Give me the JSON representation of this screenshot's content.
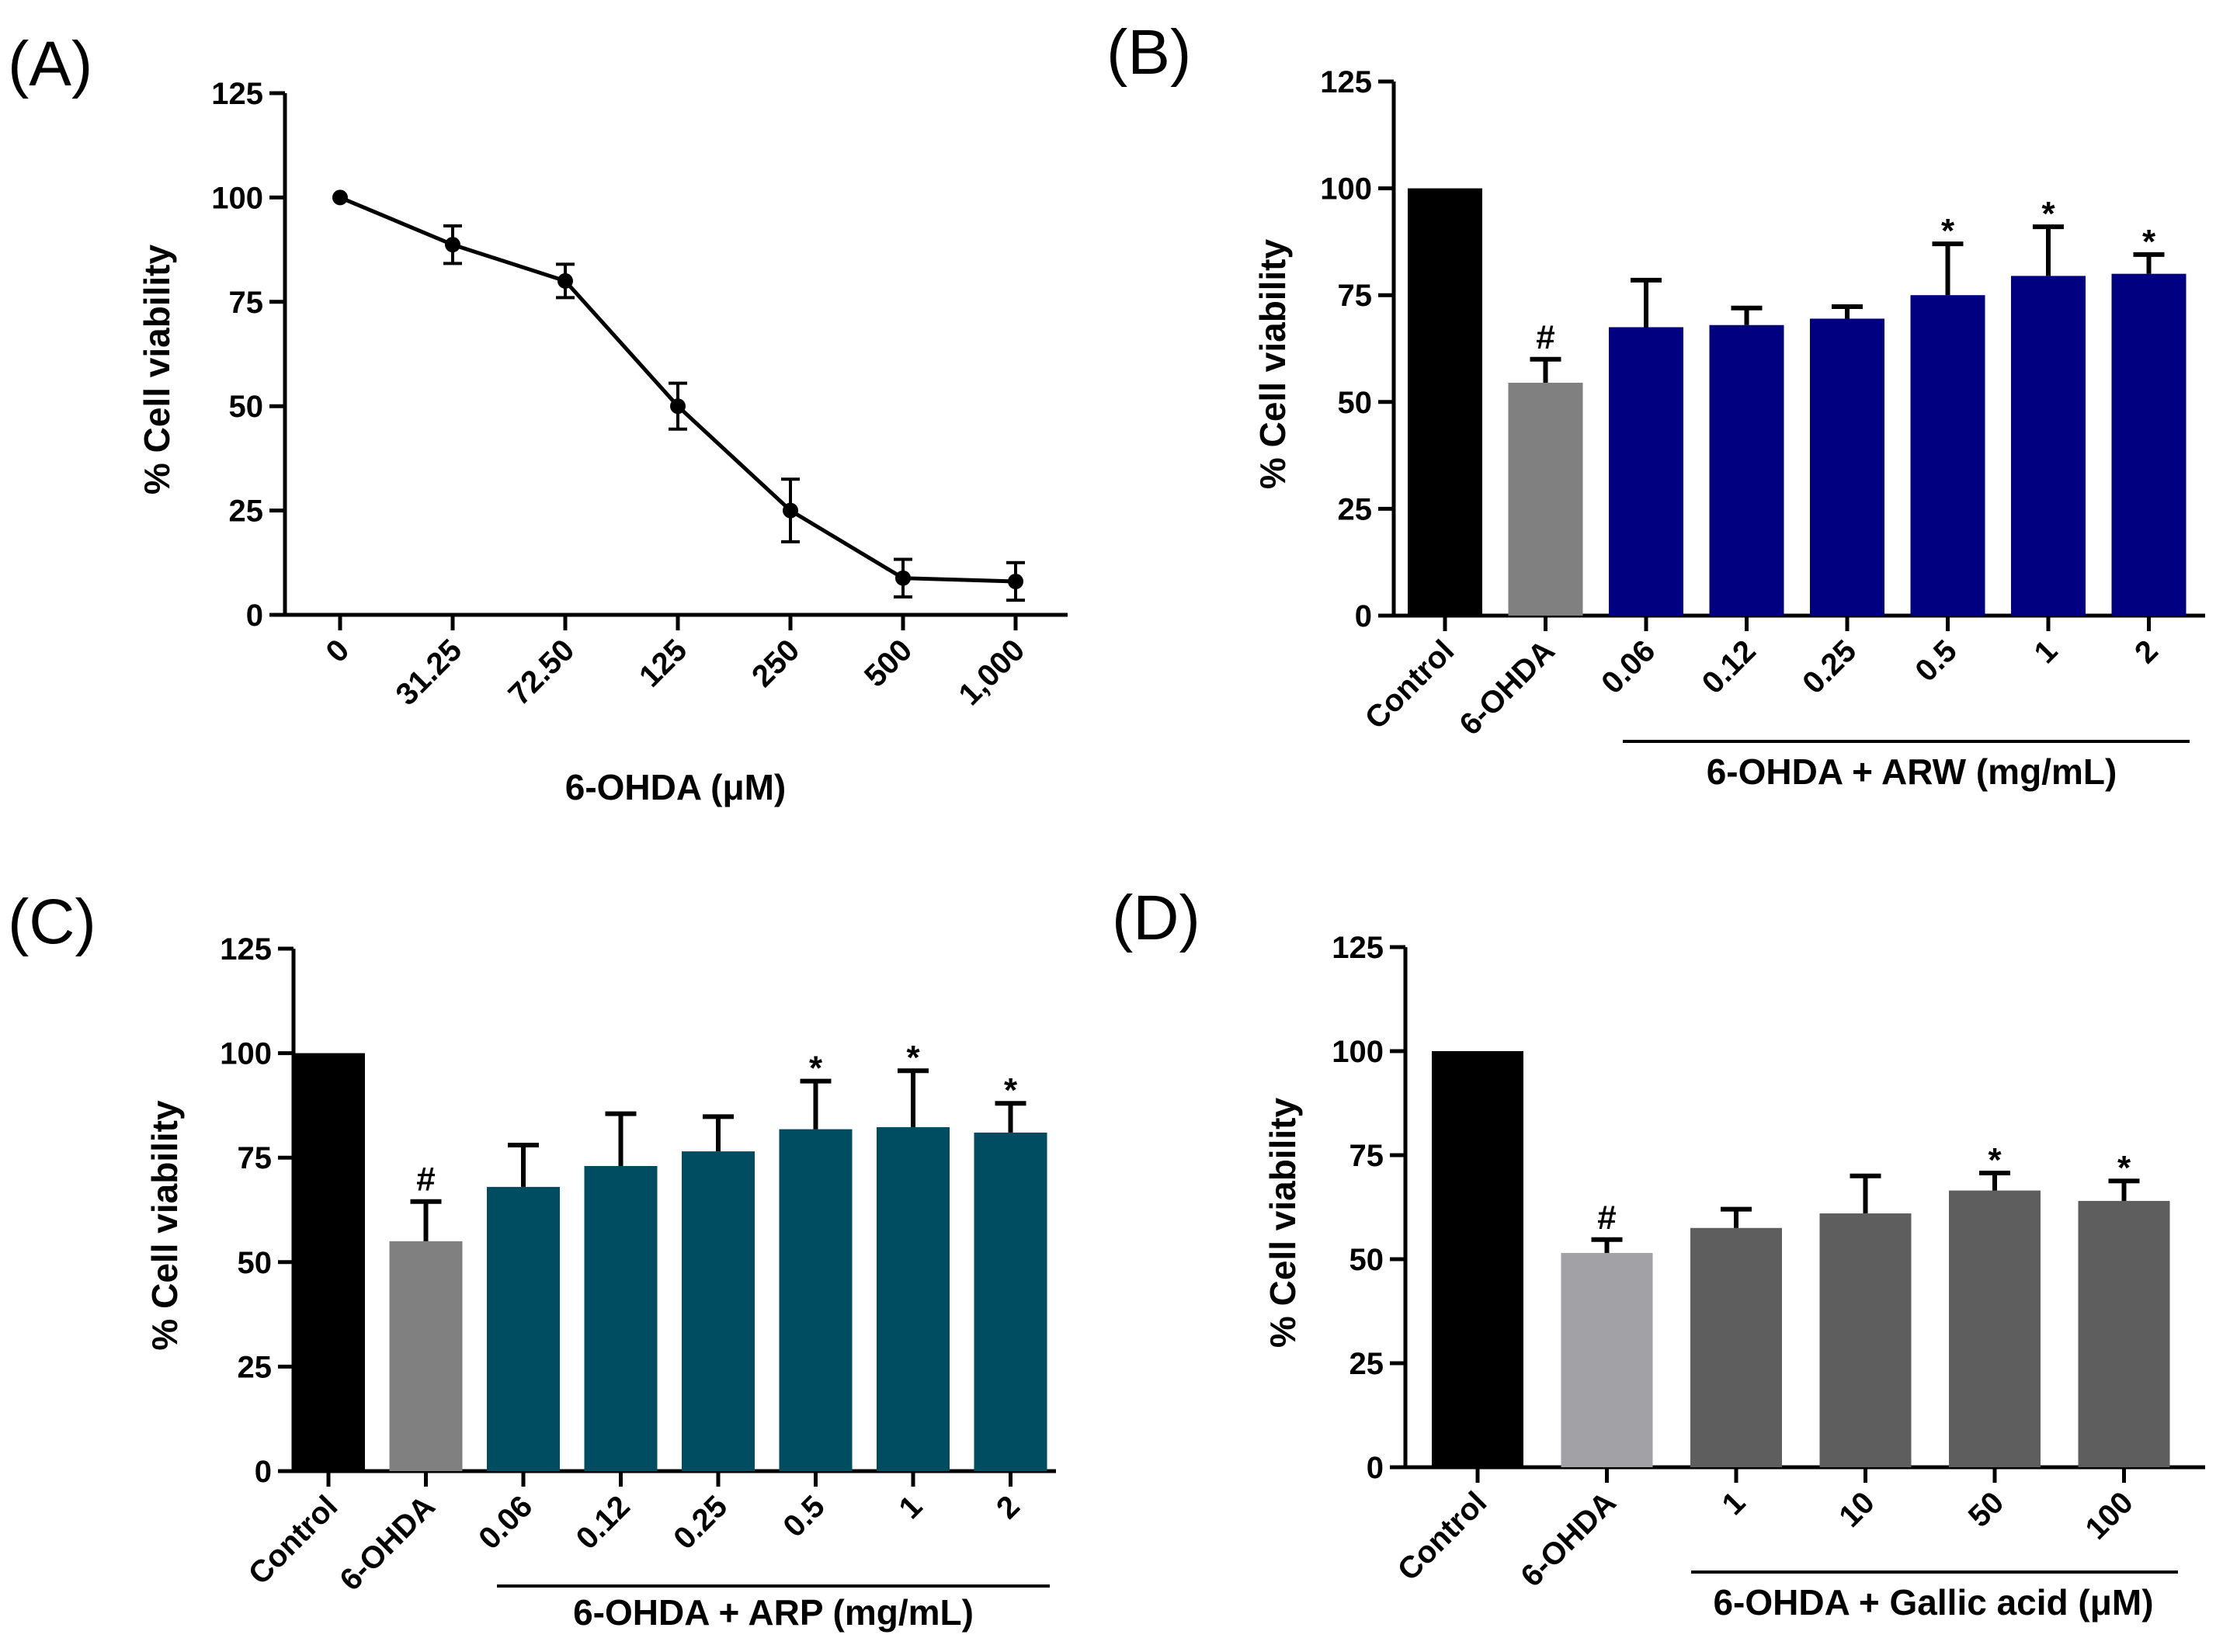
{
  "chart_data": [
    {
      "id": "A",
      "panel_label": "(A)",
      "type": "line",
      "categories": [
        "0",
        "31.25",
        "72.50",
        "125",
        "250",
        "500",
        "1,000"
      ],
      "values": [
        100,
        88.7,
        80,
        50,
        25,
        8.8,
        8
      ],
      "errors": [
        0,
        4.5,
        4,
        5.5,
        7.5,
        4.5,
        4.5
      ],
      "xlabel": "6-OHDA (μM)",
      "ylabel": "% Cell viability",
      "ylim": [
        0,
        125
      ],
      "yticks": [
        "0",
        "25",
        "50",
        "75",
        "100",
        "125"
      ]
    },
    {
      "id": "B",
      "panel_label": "(B)",
      "type": "bar",
      "categories": [
        "Control",
        "6-OHDA",
        "0.06",
        "0.12",
        "0.25",
        "0.5",
        "1",
        "2"
      ],
      "values": [
        100,
        54.5,
        67.5,
        68,
        69.5,
        75,
        79.5,
        80
      ],
      "errors": [
        0,
        5.5,
        11,
        4,
        2.8,
        12,
        11.5,
        4.5
      ],
      "annotations": [
        "",
        "#",
        "",
        "",
        "",
        "*",
        "*",
        "*"
      ],
      "colors": [
        "#000000",
        "#808080",
        "#000080",
        "#000080",
        "#000080",
        "#000080",
        "#000080",
        "#000080"
      ],
      "group_label": "6-OHDA + ARW (mg/mL)",
      "ylabel": "% Cell viability",
      "ylim": [
        0,
        125
      ],
      "yticks": [
        "0",
        "25",
        "50",
        "75",
        "100",
        "125"
      ]
    },
    {
      "id": "C",
      "panel_label": "(C)",
      "type": "bar",
      "categories": [
        "Control",
        "6-OHDA",
        "0.06",
        "0.12",
        "0.25",
        "0.5",
        "1",
        "2"
      ],
      "values": [
        100,
        55,
        68,
        73,
        76.5,
        81.8,
        82.3,
        81
      ],
      "errors": [
        0,
        9.5,
        10,
        12.5,
        8.3,
        11.5,
        13.5,
        7
      ],
      "annotations": [
        "",
        "#",
        "",
        "",
        "",
        "*",
        "*",
        "*"
      ],
      "colors": [
        "#000000",
        "#808080",
        "#004c60",
        "#004c60",
        "#004c60",
        "#004c60",
        "#004c60",
        "#004c60"
      ],
      "group_label": "6-OHDA + ARP (mg/mL)",
      "ylabel": "% Cell viability",
      "ylim": [
        0,
        125
      ],
      "yticks": [
        "0",
        "25",
        "50",
        "75",
        "100",
        "125"
      ]
    },
    {
      "id": "D",
      "panel_label": "(D)",
      "type": "bar",
      "categories": [
        "Control",
        "6-OHDA",
        "1",
        "10",
        "50",
        "100"
      ],
      "values": [
        100,
        51.5,
        57.5,
        61,
        66.5,
        64
      ],
      "errors": [
        0,
        3.2,
        4.5,
        9,
        4.2,
        4.8
      ],
      "annotations": [
        "",
        "#",
        "",
        "",
        "*",
        "*"
      ],
      "colors": [
        "#000000",
        "#a2a2a6",
        "#5e5e5e",
        "#5e5e5e",
        "#5e5e5e",
        "#5e5e5e"
      ],
      "group_label": "6-OHDA + Gallic acid (μM)",
      "ylabel": "% Cell viability",
      "ylim": [
        0,
        125
      ],
      "yticks": [
        "0",
        "25",
        "50",
        "75",
        "100",
        "125"
      ]
    }
  ]
}
